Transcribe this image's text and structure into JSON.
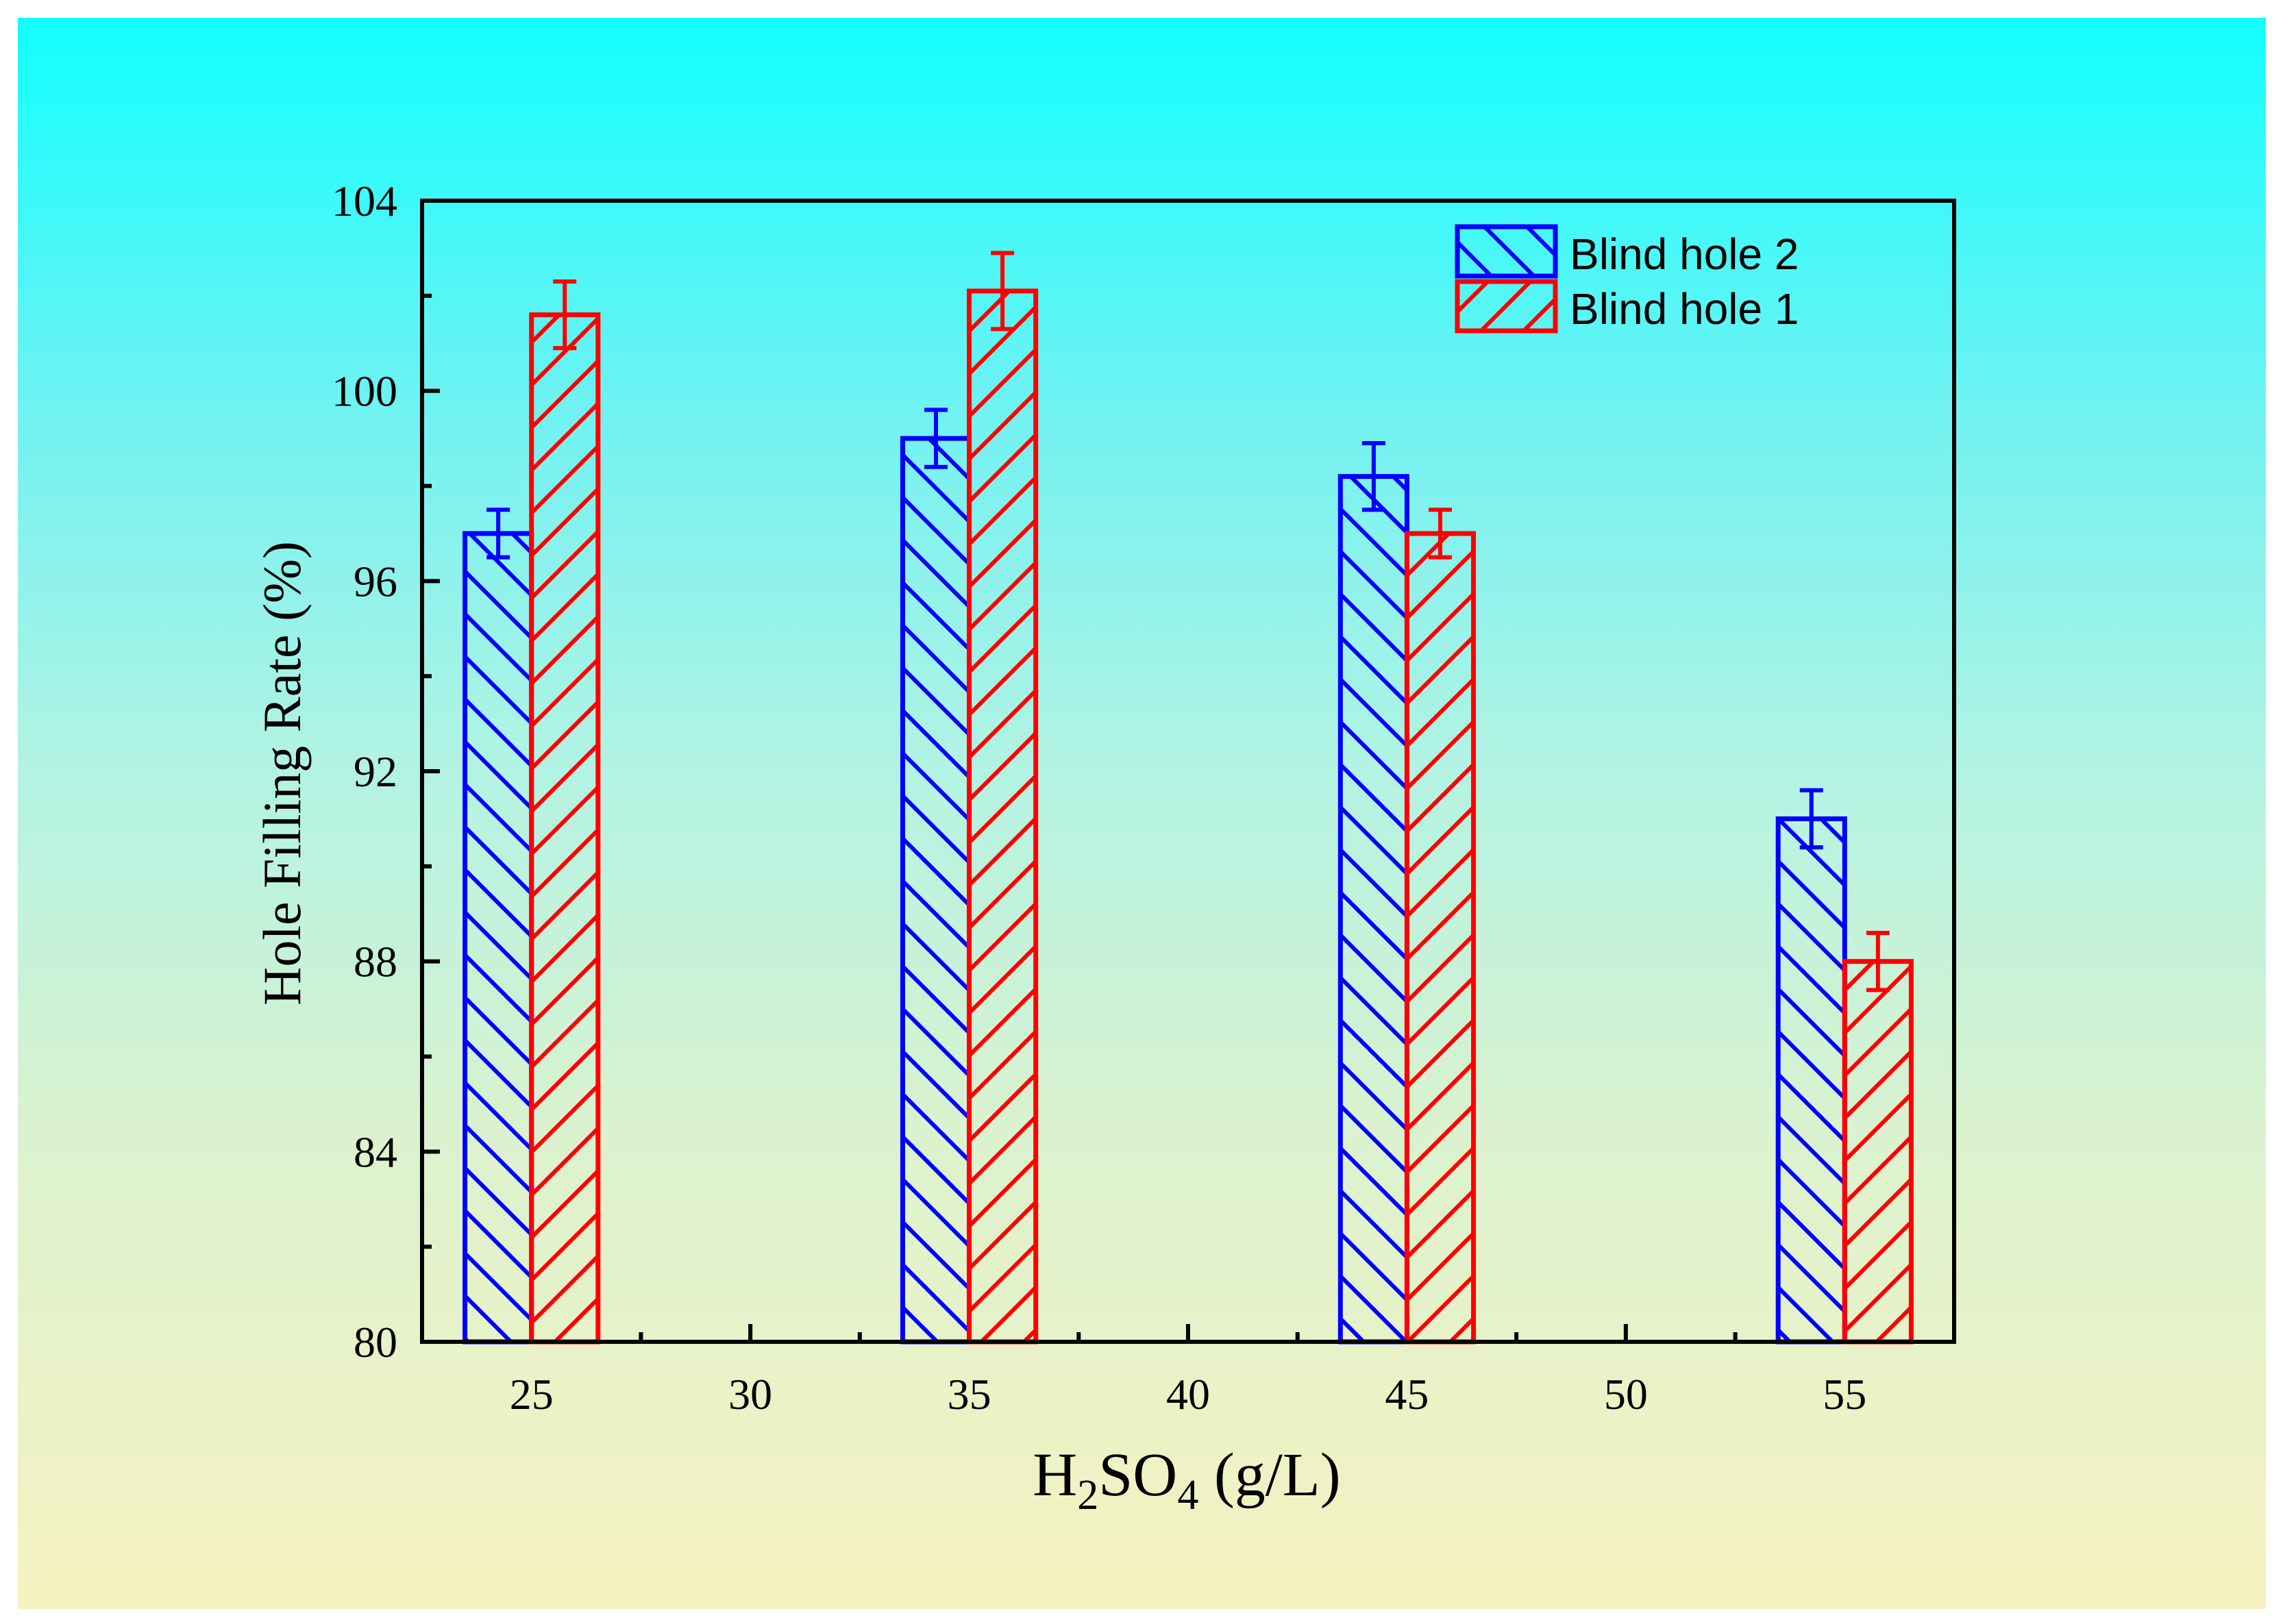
{
  "chart_data": {
    "type": "bar",
    "xlabel": "H2SO4 (g/L)",
    "ylabel": "Hole Filling Rate (%)",
    "xlim": [
      22.5,
      57.5
    ],
    "ylim": [
      80,
      104
    ],
    "x_ticks": [
      25,
      30,
      35,
      40,
      45,
      50,
      55
    ],
    "y_ticks": [
      80,
      84,
      88,
      92,
      96,
      100,
      104
    ],
    "categories": [
      25,
      35,
      45,
      55
    ],
    "series": [
      {
        "name": "Blind hole 2",
        "color": "#0000FF",
        "values": [
          97.0,
          99.0,
          98.2,
          91.0
        ],
        "errors": [
          0.5,
          0.6,
          0.7,
          0.6
        ]
      },
      {
        "name": "Blind hole 1",
        "color": "#FF0000",
        "values": [
          101.6,
          102.1,
          97.0,
          88.0
        ],
        "errors": [
          0.7,
          0.8,
          0.5,
          0.6
        ]
      }
    ],
    "grid": false,
    "legend": "top-right"
  }
}
